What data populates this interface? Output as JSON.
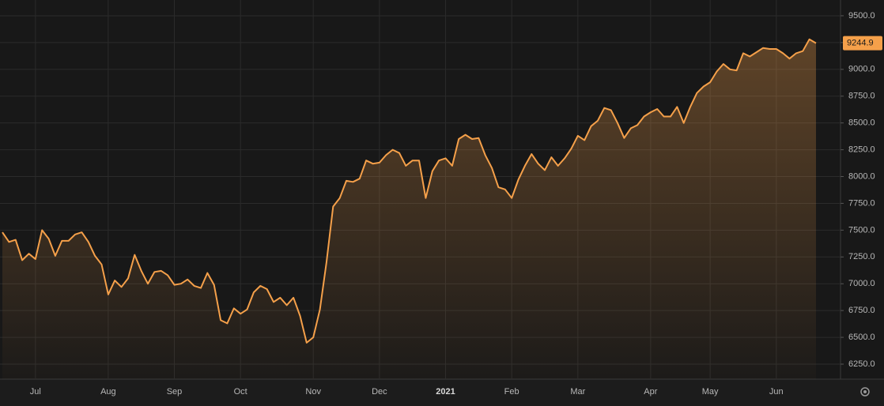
{
  "chart_data": {
    "type": "line",
    "categories": [
      null,
      null,
      null,
      null,
      null,
      "Jul",
      null,
      null,
      null,
      null,
      null,
      null,
      null,
      null,
      null,
      null,
      "Aug",
      null,
      null,
      null,
      null,
      null,
      null,
      null,
      null,
      null,
      "Sep",
      null,
      null,
      null,
      null,
      null,
      null,
      null,
      null,
      null,
      "Oct",
      null,
      null,
      null,
      null,
      null,
      null,
      null,
      null,
      null,
      null,
      "Nov",
      null,
      null,
      null,
      null,
      null,
      null,
      null,
      null,
      null,
      "Dec",
      null,
      null,
      null,
      null,
      null,
      null,
      null,
      null,
      null,
      "2021",
      null,
      null,
      null,
      null,
      null,
      null,
      null,
      null,
      null,
      "Feb",
      null,
      null,
      null,
      null,
      null,
      null,
      null,
      null,
      null,
      "Mar",
      null,
      null,
      null,
      null,
      null,
      null,
      null,
      null,
      null,
      null,
      "Apr",
      null,
      null,
      null,
      null,
      null,
      null,
      null,
      null,
      "May",
      null,
      null,
      null,
      null,
      null,
      null,
      null,
      null,
      null,
      "Jun",
      null,
      null,
      null,
      null,
      null,
      null
    ],
    "values": [
      7480,
      7390,
      7410,
      7220,
      7280,
      7230,
      7500,
      7420,
      7260,
      7400,
      7400,
      7460,
      7480,
      7390,
      7260,
      7180,
      6900,
      7030,
      6970,
      7050,
      7270,
      7120,
      7000,
      7110,
      7120,
      7080,
      6990,
      7000,
      7040,
      6980,
      6960,
      7100,
      6990,
      6660,
      6630,
      6770,
      6720,
      6760,
      6920,
      6980,
      6950,
      6830,
      6870,
      6800,
      6870,
      6700,
      6450,
      6500,
      6760,
      7200,
      7720,
      7800,
      7960,
      7950,
      7980,
      8150,
      8120,
      8130,
      8200,
      8250,
      8220,
      8100,
      8150,
      8150,
      7800,
      8050,
      8150,
      8170,
      8100,
      8350,
      8390,
      8350,
      8360,
      8200,
      8080,
      7900,
      7880,
      7800,
      7970,
      8100,
      8210,
      8120,
      8060,
      8180,
      8100,
      8170,
      8260,
      8380,
      8340,
      8470,
      8520,
      8640,
      8620,
      8500,
      8360,
      8450,
      8480,
      8560,
      8600,
      8630,
      8560,
      8560,
      8650,
      8500,
      8650,
      8780,
      8840,
      8880,
      8980,
      9050,
      9000,
      8990,
      9150,
      9120,
      9160,
      9200,
      9190,
      9190,
      9150,
      9100,
      9150,
      9170,
      9280,
      9244.9
    ],
    "color": "#f5a04a",
    "ylim": [
      6110,
      9647
    ],
    "yticks": [
      {
        "value": 6250,
        "label": "6250.0"
      },
      {
        "value": 6500,
        "label": "6500.0"
      },
      {
        "value": 6750,
        "label": "6750.0"
      },
      {
        "value": 7000,
        "label": "7000.0"
      },
      {
        "value": 7250,
        "label": "7250.0"
      },
      {
        "value": 7500,
        "label": "7500.0"
      },
      {
        "value": 7750,
        "label": "7750.0"
      },
      {
        "value": 8000,
        "label": "8000.0"
      },
      {
        "value": 8250,
        "label": "8250.0"
      },
      {
        "value": 8500,
        "label": "8500.0"
      },
      {
        "value": 8750,
        "label": "8750.0"
      },
      {
        "value": 9000,
        "label": "9000.0"
      },
      {
        "value": 9250,
        "label": "9250.0"
      },
      {
        "value": 9500,
        "label": "9500.0"
      }
    ],
    "grid": true
  }
}
